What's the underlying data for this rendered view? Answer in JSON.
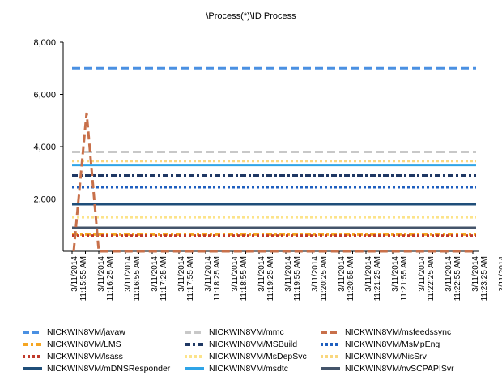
{
  "chart_data": {
    "type": "line",
    "title": "\\Process(*)\\ID Process",
    "ylim": [
      0,
      8000
    ],
    "yticks": [
      "8,000",
      "6,000",
      "4,000",
      "2,000"
    ],
    "y_tick_values": [
      8000,
      6000,
      4000,
      2000
    ],
    "x": [
      "3/11/2014 11:15:55 AM",
      "3/11/2014 11:16:25 AM",
      "3/11/2014 11:16:55 AM",
      "3/11/2014 11:17:25 AM",
      "3/11/2014 11:17:55 AM",
      "3/11/2014 11:18:25 AM",
      "3/11/2014 11:18:55 AM",
      "3/11/2014 11:19:25 AM",
      "3/11/2014 11:19:55 AM",
      "3/11/2014 11:20:25 AM",
      "3/11/2014 11:20:55 AM",
      "3/11/2014 11:21:25 AM",
      "3/11/2014 11:21:55 AM",
      "3/11/2014 11:22:25 AM",
      "3/11/2014 11:22:55 AM",
      "3/11/2014 11:23:25 AM",
      "3/11/2014 11:23:55 AM"
    ],
    "series": [
      {
        "name": "NICKWIN8VM/javaw",
        "color": "#4a90e2",
        "dash": "dash",
        "constant": 7000
      },
      {
        "name": "NICKWIN8VM/mmc",
        "color": "#c8c8c8",
        "dash": "dash",
        "constant": 3800
      },
      {
        "name": "NICKWIN8VM/msfeedssync",
        "color": "#c8704a",
        "dash": "dash",
        "spike": [
          0,
          5300,
          0
        ]
      },
      {
        "name": "NICKWIN8VM/LMS",
        "color": "#f5a623",
        "dash": "dashdot",
        "constant": 640
      },
      {
        "name": "NICKWIN8VM/MSBuild",
        "color": "#1f3864",
        "dash": "dashdot",
        "constant": 2900
      },
      {
        "name": "NICKWIN8VM/MsMpEng",
        "color": "#1f5fbf",
        "dash": "dot",
        "constant": 2450
      },
      {
        "name": "NICKWIN8VM/lsass",
        "color": "#c0392b",
        "dash": "dot",
        "constant": 600
      },
      {
        "name": "NICKWIN8VM/MsDepSvc",
        "color": "#fce38a",
        "dash": "dot",
        "constant": 1300
      },
      {
        "name": "NICKWIN8VM/NisSrv",
        "color": "#f9d77e",
        "dash": "dot",
        "constant": 3450
      },
      {
        "name": "NICKWIN8VM/mDNSResponder",
        "color": "#1f4e79",
        "dash": "solid",
        "constant": 1800
      },
      {
        "name": "NICKWIN8VM/msdtc",
        "color": "#2fa4e7",
        "dash": "solid",
        "constant": 3300
      },
      {
        "name": "NICKWIN8VM/nvSCPAPISvr",
        "color": "#44546a",
        "dash": "solid",
        "constant": 900
      }
    ],
    "legend_position": "bottom",
    "grid": false
  }
}
